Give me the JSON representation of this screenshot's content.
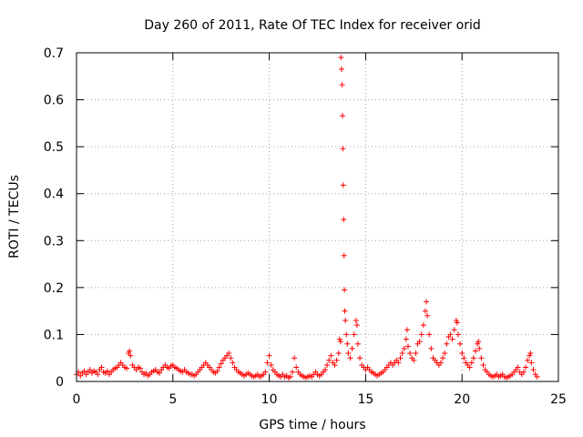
{
  "chart_data": {
    "type": "scatter",
    "title": "Day 260 of 2011, Rate Of TEC Index for receiver orid",
    "xlabel": "GPS time / hours",
    "ylabel": "ROTI / TECUs",
    "xlim": [
      0,
      25
    ],
    "ylim": [
      0,
      0.7
    ],
    "xticks": [
      0,
      5,
      10,
      15,
      20,
      25
    ],
    "yticks": [
      0,
      0.1,
      0.2,
      0.3,
      0.4,
      0.5,
      0.6,
      0.7
    ],
    "xtick_labels": [
      "0",
      "5",
      "10",
      "15",
      "20",
      "25"
    ],
    "ytick_labels": [
      "0",
      "0.1",
      "0.2",
      "0.3",
      "0.4",
      "0.5",
      "0.6",
      "0.7"
    ],
    "grid": true,
    "marker": "+",
    "color": "#ff0000",
    "points": [
      [
        0.0,
        0.015
      ],
      [
        0.1,
        0.02
      ],
      [
        0.2,
        0.012
      ],
      [
        0.3,
        0.018
      ],
      [
        0.4,
        0.022
      ],
      [
        0.5,
        0.015
      ],
      [
        0.6,
        0.02
      ],
      [
        0.7,
        0.025
      ],
      [
        0.8,
        0.018
      ],
      [
        0.9,
        0.022
      ],
      [
        1.0,
        0.02
      ],
      [
        1.1,
        0.015
      ],
      [
        1.2,
        0.025
      ],
      [
        1.3,
        0.03
      ],
      [
        1.4,
        0.02
      ],
      [
        1.5,
        0.018
      ],
      [
        1.6,
        0.022
      ],
      [
        1.7,
        0.015
      ],
      [
        1.8,
        0.02
      ],
      [
        1.9,
        0.025
      ],
      [
        2.0,
        0.028
      ],
      [
        2.1,
        0.03
      ],
      [
        2.2,
        0.035
      ],
      [
        2.3,
        0.04
      ],
      [
        2.4,
        0.035
      ],
      [
        2.5,
        0.03
      ],
      [
        2.6,
        0.028
      ],
      [
        2.7,
        0.06
      ],
      [
        2.75,
        0.065
      ],
      [
        2.8,
        0.055
      ],
      [
        2.9,
        0.035
      ],
      [
        3.0,
        0.03
      ],
      [
        3.1,
        0.025
      ],
      [
        3.2,
        0.03
      ],
      [
        3.3,
        0.028
      ],
      [
        3.4,
        0.02
      ],
      [
        3.5,
        0.015
      ],
      [
        3.6,
        0.018
      ],
      [
        3.7,
        0.012
      ],
      [
        3.8,
        0.015
      ],
      [
        3.9,
        0.02
      ],
      [
        4.0,
        0.022
      ],
      [
        4.1,
        0.025
      ],
      [
        4.2,
        0.02
      ],
      [
        4.3,
        0.018
      ],
      [
        4.4,
        0.025
      ],
      [
        4.5,
        0.03
      ],
      [
        4.6,
        0.035
      ],
      [
        4.7,
        0.03
      ],
      [
        4.8,
        0.028
      ],
      [
        4.9,
        0.033
      ],
      [
        5.0,
        0.035
      ],
      [
        5.1,
        0.03
      ],
      [
        5.2,
        0.028
      ],
      [
        5.3,
        0.025
      ],
      [
        5.4,
        0.022
      ],
      [
        5.5,
        0.02
      ],
      [
        5.6,
        0.025
      ],
      [
        5.7,
        0.02
      ],
      [
        5.8,
        0.018
      ],
      [
        5.9,
        0.015
      ],
      [
        6.0,
        0.015
      ],
      [
        6.1,
        0.012
      ],
      [
        6.2,
        0.015
      ],
      [
        6.3,
        0.02
      ],
      [
        6.4,
        0.025
      ],
      [
        6.5,
        0.03
      ],
      [
        6.6,
        0.035
      ],
      [
        6.7,
        0.04
      ],
      [
        6.8,
        0.035
      ],
      [
        6.9,
        0.03
      ],
      [
        7.0,
        0.025
      ],
      [
        7.1,
        0.02
      ],
      [
        7.2,
        0.018
      ],
      [
        7.3,
        0.022
      ],
      [
        7.4,
        0.03
      ],
      [
        7.5,
        0.038
      ],
      [
        7.6,
        0.045
      ],
      [
        7.7,
        0.05
      ],
      [
        7.8,
        0.055
      ],
      [
        7.9,
        0.06
      ],
      [
        8.0,
        0.05
      ],
      [
        8.1,
        0.04
      ],
      [
        8.2,
        0.03
      ],
      [
        8.3,
        0.025
      ],
      [
        8.4,
        0.02
      ],
      [
        8.5,
        0.018
      ],
      [
        8.6,
        0.015
      ],
      [
        8.7,
        0.012
      ],
      [
        8.8,
        0.015
      ],
      [
        8.9,
        0.018
      ],
      [
        9.0,
        0.015
      ],
      [
        9.1,
        0.012
      ],
      [
        9.2,
        0.01
      ],
      [
        9.3,
        0.012
      ],
      [
        9.4,
        0.015
      ],
      [
        9.5,
        0.01
      ],
      [
        9.6,
        0.012
      ],
      [
        9.7,
        0.015
      ],
      [
        9.8,
        0.02
      ],
      [
        9.9,
        0.04
      ],
      [
        10.0,
        0.055
      ],
      [
        10.1,
        0.035
      ],
      [
        10.2,
        0.025
      ],
      [
        10.3,
        0.02
      ],
      [
        10.4,
        0.015
      ],
      [
        10.5,
        0.012
      ],
      [
        10.6,
        0.01
      ],
      [
        10.7,
        0.015
      ],
      [
        10.8,
        0.01
      ],
      [
        10.9,
        0.012
      ],
      [
        11.0,
        0.008
      ],
      [
        11.1,
        0.01
      ],
      [
        11.2,
        0.02
      ],
      [
        11.3,
        0.05
      ],
      [
        11.4,
        0.03
      ],
      [
        11.5,
        0.02
      ],
      [
        11.6,
        0.015
      ],
      [
        11.7,
        0.012
      ],
      [
        11.8,
        0.01
      ],
      [
        11.9,
        0.008
      ],
      [
        12.0,
        0.01
      ],
      [
        12.1,
        0.012
      ],
      [
        12.2,
        0.01
      ],
      [
        12.3,
        0.015
      ],
      [
        12.4,
        0.02
      ],
      [
        12.5,
        0.015
      ],
      [
        12.6,
        0.012
      ],
      [
        12.7,
        0.015
      ],
      [
        12.8,
        0.02
      ],
      [
        12.9,
        0.025
      ],
      [
        13.0,
        0.035
      ],
      [
        13.1,
        0.045
      ],
      [
        13.2,
        0.055
      ],
      [
        13.3,
        0.04
      ],
      [
        13.4,
        0.035
      ],
      [
        13.5,
        0.045
      ],
      [
        13.6,
        0.06
      ],
      [
        13.65,
        0.09
      ],
      [
        13.7,
        0.085
      ],
      [
        13.72,
        0.69
      ],
      [
        13.75,
        0.665
      ],
      [
        13.78,
        0.632
      ],
      [
        13.8,
        0.566
      ],
      [
        13.82,
        0.496
      ],
      [
        13.84,
        0.418
      ],
      [
        13.86,
        0.345
      ],
      [
        13.88,
        0.268
      ],
      [
        13.9,
        0.195
      ],
      [
        13.92,
        0.15
      ],
      [
        13.95,
        0.13
      ],
      [
        14.0,
        0.1
      ],
      [
        14.05,
        0.08
      ],
      [
        14.1,
        0.06
      ],
      [
        14.2,
        0.05
      ],
      [
        14.3,
        0.07
      ],
      [
        14.4,
        0.1
      ],
      [
        14.5,
        0.13
      ],
      [
        14.55,
        0.12
      ],
      [
        14.6,
        0.08
      ],
      [
        14.7,
        0.05
      ],
      [
        14.8,
        0.035
      ],
      [
        14.9,
        0.03
      ],
      [
        15.0,
        0.025
      ],
      [
        15.1,
        0.03
      ],
      [
        15.2,
        0.025
      ],
      [
        15.3,
        0.02
      ],
      [
        15.4,
        0.018
      ],
      [
        15.5,
        0.015
      ],
      [
        15.6,
        0.012
      ],
      [
        15.7,
        0.015
      ],
      [
        15.8,
        0.018
      ],
      [
        15.9,
        0.02
      ],
      [
        16.0,
        0.025
      ],
      [
        16.1,
        0.03
      ],
      [
        16.2,
        0.035
      ],
      [
        16.3,
        0.04
      ],
      [
        16.4,
        0.035
      ],
      [
        16.5,
        0.04
      ],
      [
        16.6,
        0.045
      ],
      [
        16.7,
        0.04
      ],
      [
        16.8,
        0.05
      ],
      [
        16.9,
        0.06
      ],
      [
        17.0,
        0.07
      ],
      [
        17.1,
        0.09
      ],
      [
        17.15,
        0.11
      ],
      [
        17.2,
        0.075
      ],
      [
        17.3,
        0.06
      ],
      [
        17.4,
        0.05
      ],
      [
        17.5,
        0.045
      ],
      [
        17.6,
        0.06
      ],
      [
        17.7,
        0.08
      ],
      [
        17.8,
        0.085
      ],
      [
        17.9,
        0.1
      ],
      [
        18.0,
        0.12
      ],
      [
        18.1,
        0.15
      ],
      [
        18.15,
        0.17
      ],
      [
        18.2,
        0.14
      ],
      [
        18.3,
        0.1
      ],
      [
        18.4,
        0.07
      ],
      [
        18.5,
        0.05
      ],
      [
        18.6,
        0.045
      ],
      [
        18.7,
        0.04
      ],
      [
        18.8,
        0.035
      ],
      [
        18.9,
        0.04
      ],
      [
        19.0,
        0.05
      ],
      [
        19.1,
        0.06
      ],
      [
        19.2,
        0.08
      ],
      [
        19.3,
        0.095
      ],
      [
        19.4,
        0.1
      ],
      [
        19.5,
        0.09
      ],
      [
        19.6,
        0.11
      ],
      [
        19.7,
        0.13
      ],
      [
        19.75,
        0.125
      ],
      [
        19.8,
        0.1
      ],
      [
        19.9,
        0.08
      ],
      [
        20.0,
        0.06
      ],
      [
        20.1,
        0.05
      ],
      [
        20.2,
        0.04
      ],
      [
        20.3,
        0.035
      ],
      [
        20.4,
        0.03
      ],
      [
        20.5,
        0.04
      ],
      [
        20.6,
        0.05
      ],
      [
        20.7,
        0.065
      ],
      [
        20.8,
        0.08
      ],
      [
        20.85,
        0.085
      ],
      [
        20.9,
        0.07
      ],
      [
        21.0,
        0.05
      ],
      [
        21.1,
        0.035
      ],
      [
        21.2,
        0.025
      ],
      [
        21.3,
        0.02
      ],
      [
        21.4,
        0.015
      ],
      [
        21.5,
        0.012
      ],
      [
        21.6,
        0.01
      ],
      [
        21.7,
        0.012
      ],
      [
        21.8,
        0.015
      ],
      [
        21.9,
        0.01
      ],
      [
        22.0,
        0.012
      ],
      [
        22.1,
        0.015
      ],
      [
        22.2,
        0.01
      ],
      [
        22.3,
        0.008
      ],
      [
        22.4,
        0.01
      ],
      [
        22.5,
        0.012
      ],
      [
        22.6,
        0.015
      ],
      [
        22.7,
        0.02
      ],
      [
        22.8,
        0.025
      ],
      [
        22.9,
        0.03
      ],
      [
        23.0,
        0.02
      ],
      [
        23.1,
        0.015
      ],
      [
        23.2,
        0.02
      ],
      [
        23.3,
        0.03
      ],
      [
        23.4,
        0.045
      ],
      [
        23.5,
        0.055
      ],
      [
        23.55,
        0.06
      ],
      [
        23.6,
        0.04
      ],
      [
        23.7,
        0.025
      ],
      [
        23.8,
        0.015
      ],
      [
        23.9,
        0.01
      ]
    ]
  }
}
